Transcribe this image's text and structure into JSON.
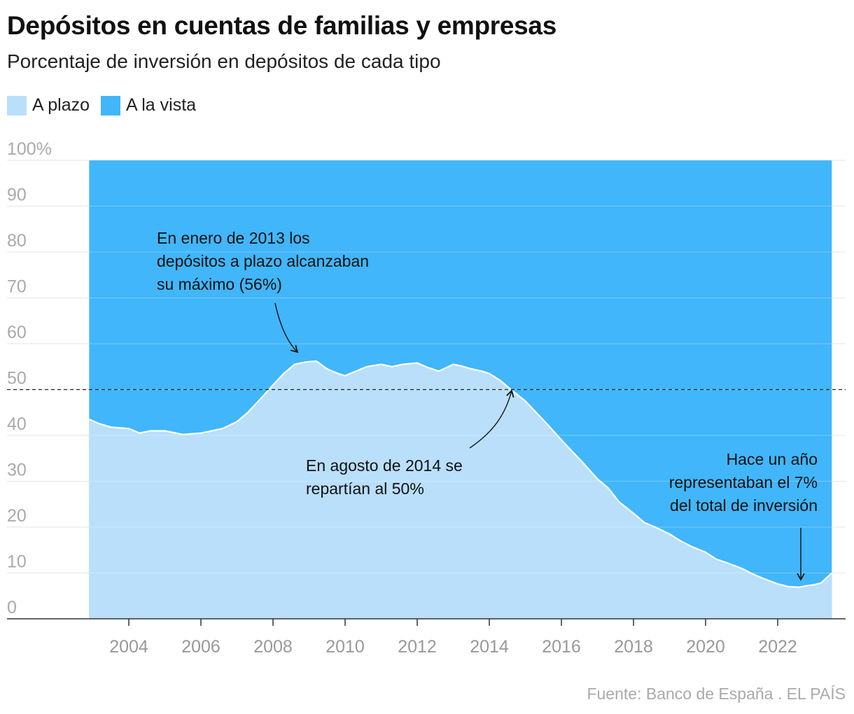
{
  "header": {
    "title": "Depósitos en cuentas de familias y empresas",
    "subtitle": "Porcentaje de inversión en depósitos de cada tipo"
  },
  "legend": [
    {
      "label": "A plazo",
      "color": "#b9dffb"
    },
    {
      "label": "A la vista",
      "color": "#41b6fa"
    }
  ],
  "source": "Fuente: Banco de España . EL PAÍS",
  "chart_data": {
    "type": "area",
    "stacked": true,
    "x_unit": "year",
    "xlim": [
      2002,
      2024
    ],
    "ylim": [
      0,
      100
    ],
    "y_ticks": [
      "100%",
      "90",
      "80",
      "70",
      "60",
      "50",
      "40",
      "30",
      "20",
      "10",
      "0"
    ],
    "x_ticks": [
      "2004",
      "2006",
      "2008",
      "2010",
      "2012",
      "2014",
      "2016",
      "2018",
      "2020",
      "2022"
    ],
    "reference_line": 50,
    "series": [
      {
        "name": "A plazo",
        "color": "#b9dffb",
        "x": [
          2002.9,
          2003.2,
          2003.5,
          2004.0,
          2004.3,
          2004.6,
          2005.0,
          2005.5,
          2006.0,
          2006.3,
          2006.6,
          2007.0,
          2007.3,
          2007.6,
          2008.0,
          2008.3,
          2008.6,
          2008.9,
          2009.2,
          2009.5,
          2009.8,
          2010.0,
          2010.3,
          2010.6,
          2011.0,
          2011.3,
          2011.6,
          2012.0,
          2012.3,
          2012.6,
          2013.0,
          2013.2,
          2013.5,
          2013.8,
          2014.0,
          2014.3,
          2014.6,
          2015.0,
          2015.3,
          2015.6,
          2016.0,
          2016.3,
          2016.6,
          2017.0,
          2017.3,
          2017.6,
          2018.0,
          2018.3,
          2018.6,
          2019.0,
          2019.3,
          2019.6,
          2020.0,
          2020.3,
          2020.6,
          2021.0,
          2021.3,
          2021.6,
          2022.0,
          2022.3,
          2022.6,
          2022.8,
          2023.0,
          2023.2,
          2023.5
        ],
        "values": [
          43.5,
          42.5,
          41.8,
          41.5,
          40.5,
          41.0,
          41.0,
          40.2,
          40.5,
          41.0,
          41.5,
          43.0,
          45.0,
          47.5,
          51.0,
          53.5,
          55.5,
          56.0,
          56.2,
          54.5,
          53.5,
          53.0,
          54.0,
          55.0,
          55.5,
          55.0,
          55.5,
          55.8,
          54.8,
          54.0,
          55.5,
          55.2,
          54.5,
          54.0,
          53.5,
          52.0,
          50.0,
          47.5,
          45.0,
          42.5,
          39.0,
          36.5,
          34.0,
          30.5,
          28.5,
          25.5,
          23.0,
          21.0,
          20.0,
          18.5,
          17.0,
          15.8,
          14.5,
          13.0,
          12.2,
          11.0,
          9.8,
          8.8,
          7.6,
          7.0,
          6.9,
          7.2,
          7.4,
          7.8,
          10.0
        ]
      },
      {
        "name": "A la vista",
        "color": "#41b6fa",
        "note": "remainder to 100%"
      }
    ],
    "annotations": [
      {
        "name": "peak-note",
        "lines": [
          "En enero de 2013 los",
          "depósitos a plazo alcanzaban",
          "su máximo (56%)"
        ]
      },
      {
        "name": "split-note",
        "lines": [
          "En agosto de 2014 se",
          "repartían al 50%"
        ]
      },
      {
        "name": "recent-note",
        "lines": [
          "Hace un año",
          "representaban el 7%",
          "del total de inversión"
        ]
      }
    ]
  }
}
